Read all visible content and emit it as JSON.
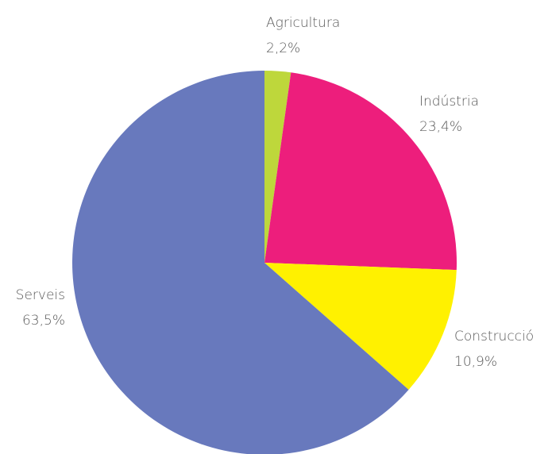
{
  "chart_data": {
    "type": "pie",
    "categories": [
      "Agricultura",
      "Indústria",
      "Construcció",
      "Serveis"
    ],
    "values": [
      2.2,
      23.4,
      10.9,
      63.5
    ],
    "value_labels": [
      "2,2%",
      "23,4%",
      "10,9%",
      "63,5%"
    ],
    "colors": [
      "#bed73b",
      "#ed1e7c",
      "#fff100",
      "#6879bd"
    ]
  }
}
